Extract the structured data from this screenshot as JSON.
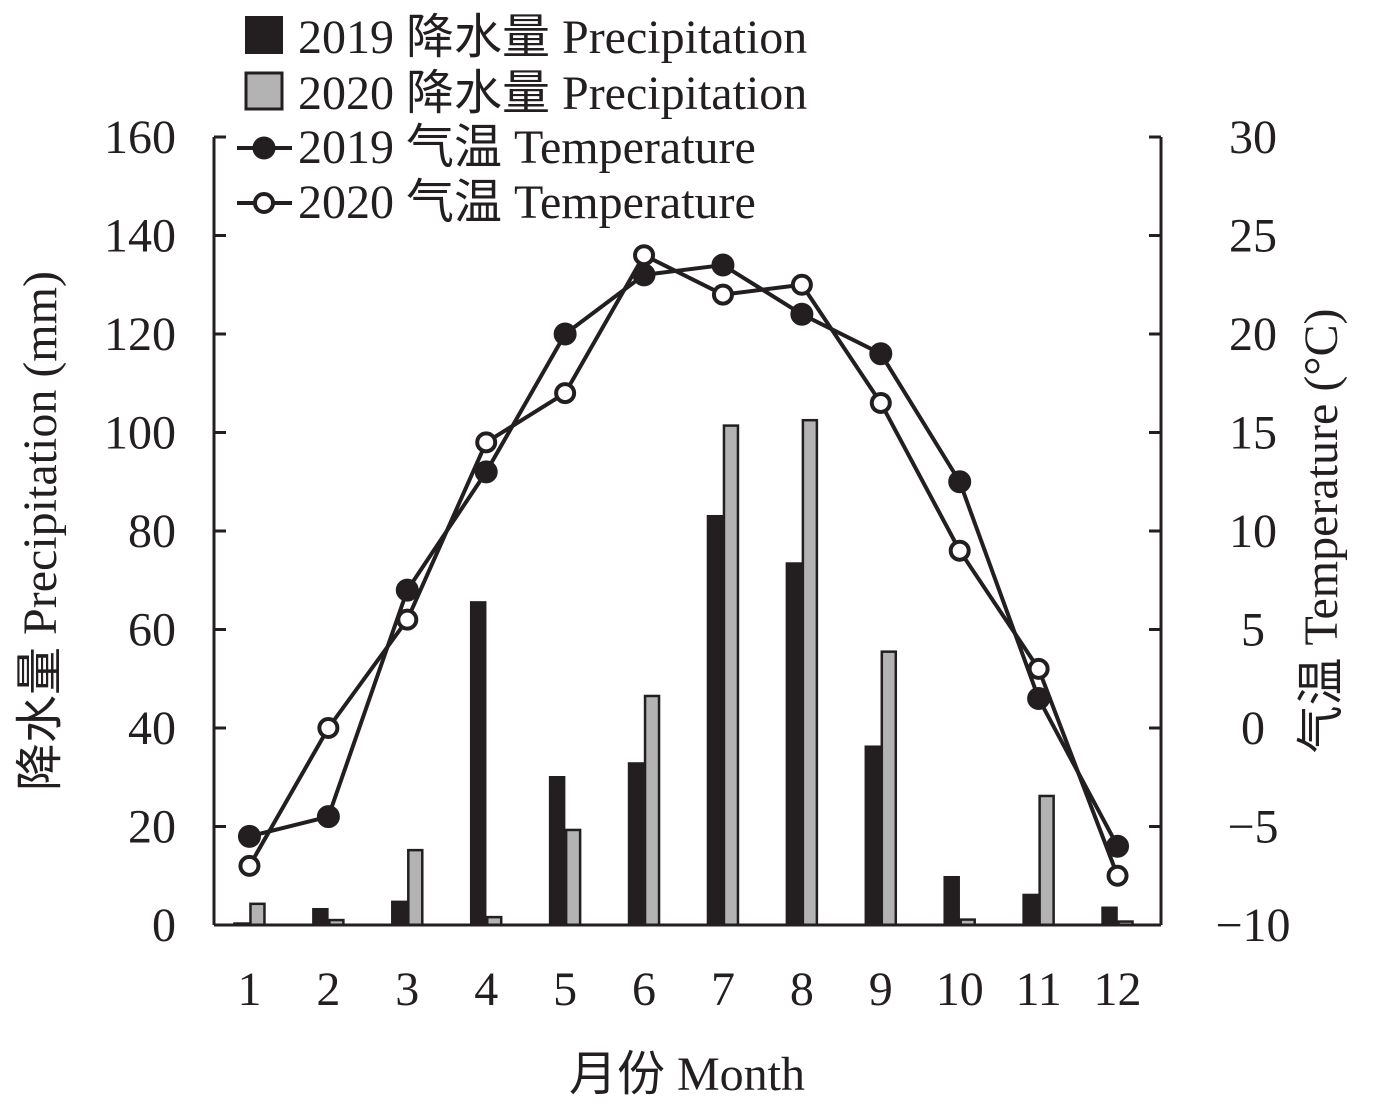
{
  "chart_data": {
    "type": "bar",
    "categories": [
      "1",
      "2",
      "3",
      "4",
      "5",
      "6",
      "7",
      "8",
      "9",
      "10",
      "11",
      "12"
    ],
    "series": [
      {
        "name": "2019 降水量 Precipitation",
        "kind": "bar",
        "axis": "left",
        "color": "#231f20",
        "values": [
          0.3,
          3.2,
          4.7,
          65.5,
          30,
          32.8,
          83,
          73.4,
          36.2,
          9.7,
          6.1,
          3.5
        ]
      },
      {
        "name": "2020 降水量 Precipitation",
        "kind": "bar",
        "axis": "left",
        "color": "#b3b3b3",
        "values": [
          4.3,
          1,
          15.2,
          1.6,
          19.3,
          46.5,
          101.4,
          102.5,
          55.5,
          1.1,
          26.2,
          0.7
        ]
      },
      {
        "name": "2019 气温 Temperature",
        "kind": "line",
        "axis": "right",
        "marker": "filled",
        "values": [
          -5.5,
          -4.5,
          7,
          13,
          20,
          23,
          23.5,
          21,
          19,
          12.5,
          1.5,
          -6
        ]
      },
      {
        "name": "2020 气温 Temperature",
        "kind": "line",
        "axis": "right",
        "marker": "open",
        "values": [
          -7,
          0,
          5.5,
          14.5,
          17,
          24,
          22,
          22.5,
          16.5,
          9,
          3,
          -7.5
        ]
      }
    ],
    "xlabel": "月份 Month",
    "ylabel": "降水量 Precipitation (mm)",
    "y2label": "气温 Temperature (°C)",
    "ylim": [
      0,
      160
    ],
    "y2lim": [
      -10,
      30
    ],
    "yticks": [
      "0",
      "20",
      "40",
      "60",
      "80",
      "100",
      "120",
      "140",
      "160"
    ],
    "y2ticks": [
      "−10",
      "−5",
      "0",
      "5",
      "10",
      "15",
      "20",
      "25",
      "30"
    ],
    "legend_position": "top-left",
    "grid": false
  }
}
